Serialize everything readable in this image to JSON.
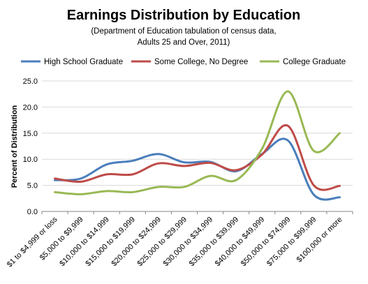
{
  "chart_data": {
    "type": "line",
    "title": "Earnings Distribution by Education",
    "subtitle_lines": [
      "(Department  of Education tabulation of census data,",
      "Adults 25 and Over, 2011)"
    ],
    "ylabel": "Percent of Distribution",
    "xlabel": "",
    "ylim": [
      0,
      25
    ],
    "yticks": [
      0,
      5,
      10,
      15,
      20,
      25
    ],
    "ytick_labels": [
      "0.0",
      "5.0",
      "10.0",
      "15.0",
      "20.0",
      "25.0"
    ],
    "grid": "horizontal",
    "legend_position": "top",
    "categories": [
      "$1 to $4,999 or loss",
      "$5,000 to $9,999",
      "$10,000 to $14,999",
      "$15,000 to $19,999",
      "$20,000 to $24,999",
      "$25,000 to $29,999",
      "$30,000 to $34,999",
      "$35,000 to $39,999",
      "$40,000 to $49,999",
      "$50,000 to $74,999",
      "$75,000 to $99,999",
      "$100,000 or more"
    ],
    "series": [
      {
        "name": "High School Graduate",
        "color": "#4a7ebb",
        "values": [
          6.0,
          6.3,
          9.0,
          9.7,
          11.0,
          9.4,
          9.5,
          7.7,
          11.0,
          13.6,
          3.2,
          2.7
        ]
      },
      {
        "name": "Some College, No Degree",
        "color": "#be4b48",
        "values": [
          6.3,
          5.7,
          7.1,
          7.1,
          9.2,
          8.7,
          9.3,
          7.9,
          10.9,
          16.4,
          5.0,
          4.9
        ]
      },
      {
        "name": "College Graduate",
        "color": "#98b954",
        "values": [
          3.7,
          3.3,
          3.9,
          3.7,
          4.7,
          4.7,
          6.8,
          6.0,
          12.0,
          23.0,
          11.6,
          15.0
        ]
      }
    ]
  }
}
